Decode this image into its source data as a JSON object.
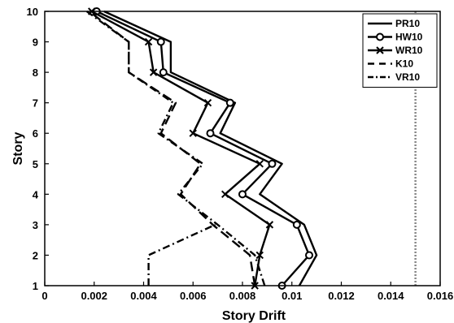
{
  "chart_data": {
    "type": "line",
    "xlabel": "Story Drift",
    "ylabel": "Story",
    "xlim": [
      0,
      0.016
    ],
    "ylim": [
      1,
      10
    ],
    "xticks": [
      "0",
      "0.002",
      "0.004",
      "0.006",
      "0.008",
      "0.01",
      "0.012",
      "0.014",
      "0.016"
    ],
    "xtick_values": [
      0,
      0.002,
      0.004,
      0.006,
      0.008,
      0.01,
      0.012,
      0.014,
      0.016
    ],
    "yticks": [
      "1",
      "2",
      "3",
      "4",
      "5",
      "6",
      "7",
      "8",
      "9",
      "10"
    ],
    "ytick_values": [
      1,
      2,
      3,
      4,
      5,
      6,
      7,
      8,
      9,
      10
    ],
    "grid": false,
    "legend_position": "top-right",
    "limit_line": {
      "x": 0.015,
      "style": "dotted",
      "color": "#888888"
    },
    "series": [
      {
        "name": "PR10",
        "style": "solid",
        "marker": "none",
        "color": "#000000",
        "x": [
          0.0103,
          0.011,
          0.0105,
          0.0087,
          0.0096,
          0.0071,
          0.0077,
          0.0051,
          0.0051,
          0.0024
        ],
        "y": [
          1,
          2,
          3,
          4,
          5,
          6,
          7,
          8,
          9,
          10
        ]
      },
      {
        "name": "HW10",
        "style": "solid",
        "marker": "circle",
        "color": "#000000",
        "x": [
          0.0096,
          0.0107,
          0.0102,
          0.008,
          0.0092,
          0.0067,
          0.0075,
          0.0048,
          0.0047,
          0.0021
        ],
        "y": [
          1,
          2,
          3,
          4,
          5,
          6,
          7,
          8,
          9,
          10
        ]
      },
      {
        "name": "WR10",
        "style": "solid",
        "marker": "x",
        "color": "#000000",
        "x": [
          0.0085,
          0.0087,
          0.0091,
          0.0073,
          0.0087,
          0.006,
          0.0066,
          0.0044,
          0.0042,
          0.0019
        ],
        "y": [
          1,
          2,
          3,
          4,
          5,
          6,
          7,
          8,
          9,
          10
        ]
      },
      {
        "name": "K10",
        "style": "longdash",
        "marker": "none",
        "color": "#000000",
        "x": [
          0.0085,
          0.0083,
          0.0068,
          0.0055,
          0.0063,
          0.0047,
          0.0053,
          0.0034,
          0.0034,
          0.0018
        ],
        "y": [
          1,
          2,
          3,
          4,
          5,
          6,
          7,
          8,
          9,
          10
        ]
      },
      {
        "name": "VR10",
        "style": "dashdot",
        "marker": "none",
        "color": "#000000",
        "x": [
          0.0089,
          0.0085,
          0.007,
          0.0054,
          0.0064,
          0.0046,
          0.0052,
          0.0034,
          0.0034,
          0.0017
        ],
        "y": [
          1,
          2,
          3,
          4,
          5,
          6,
          7,
          8,
          9,
          10
        ]
      },
      {
        "name": "",
        "style": "dashdot",
        "marker": "none",
        "color": "#000000",
        "x": [
          0.0042,
          0.0042,
          0.0069
        ],
        "y": [
          1,
          2,
          3
        ]
      }
    ]
  }
}
